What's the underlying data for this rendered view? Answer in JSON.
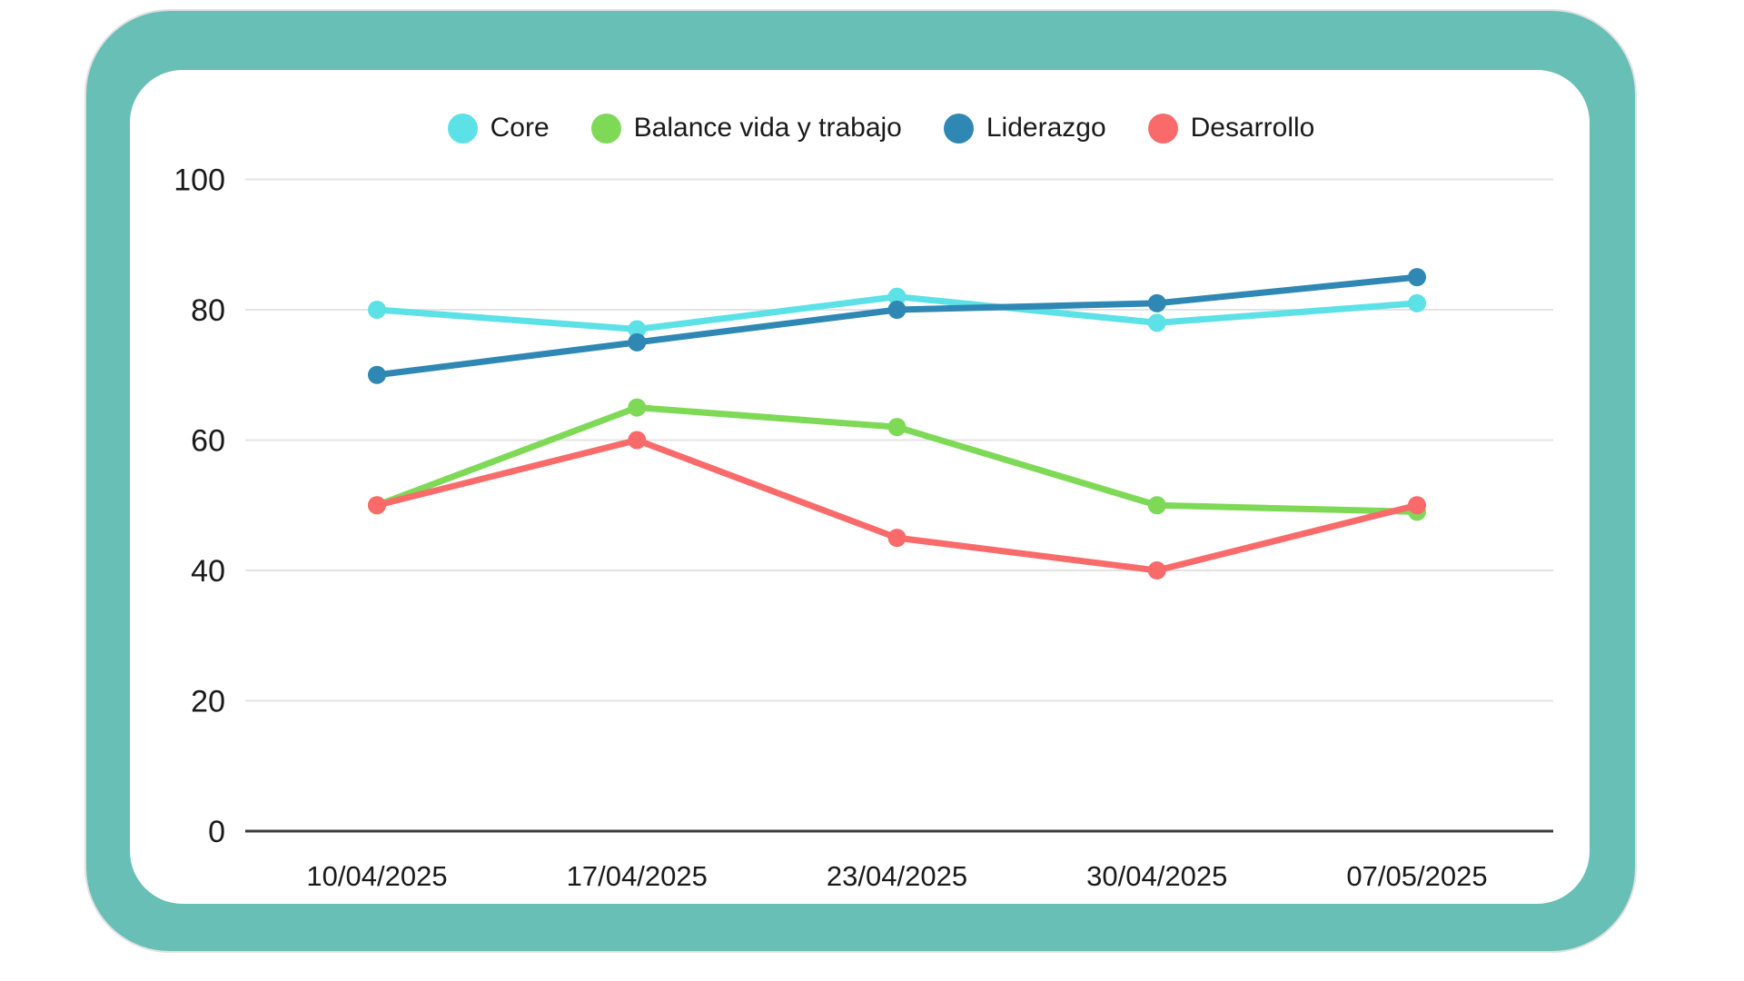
{
  "frame": {
    "background_color": "#67BFB6",
    "card_color": "#FFFFFF"
  },
  "axis": {
    "grid_color": "#E3E3E3",
    "axis_line_color": "#3B3B3B",
    "label_color": "#1A1A1A"
  },
  "chart_data": {
    "type": "line",
    "title": "",
    "xlabel": "",
    "ylabel": "",
    "x": [
      "10/04/2025",
      "17/04/2025",
      "23/04/2025",
      "30/04/2025",
      "07/05/2025"
    ],
    "series": [
      {
        "name": "Core",
        "color": "#5CE1E6",
        "values": [
          80,
          77,
          82,
          78,
          81
        ]
      },
      {
        "name": "Balance vida y trabajo",
        "color": "#7ED957",
        "values": [
          50,
          65,
          62,
          50,
          49
        ]
      },
      {
        "name": "Liderazgo",
        "color": "#2F87B4",
        "values": [
          70,
          75,
          80,
          81,
          85
        ]
      },
      {
        "name": "Desarrollo",
        "color": "#F96A6A",
        "values": [
          50,
          60,
          45,
          40,
          50
        ]
      }
    ],
    "ylim": [
      0,
      100
    ],
    "yticks": [
      0,
      20,
      40,
      60,
      80,
      100
    ],
    "grid": true,
    "legend_position": "top"
  }
}
